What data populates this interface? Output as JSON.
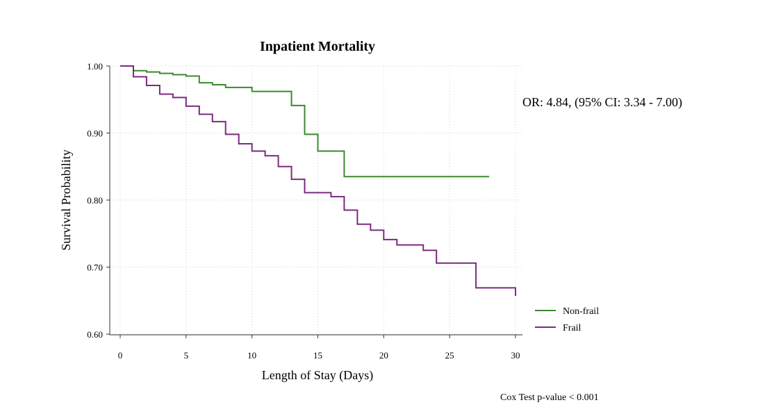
{
  "chart_data": {
    "type": "line",
    "title": "Inpatient Mortality",
    "xlabel": "Length of Stay (Days)",
    "ylabel": "Survival Probability",
    "xlim": [
      0,
      30
    ],
    "ylim": [
      0.6,
      1.0
    ],
    "x_ticks": [
      0,
      5,
      10,
      15,
      20,
      25,
      30
    ],
    "x_tick_labels": [
      "0",
      "5",
      "10",
      "15",
      "20",
      "25",
      "30"
    ],
    "y_ticks": [
      0.6,
      0.7,
      0.8,
      0.9,
      1.0
    ],
    "y_tick_labels": [
      "0.60",
      "0.70",
      "0.80",
      "0.90",
      "1.00"
    ],
    "grid": true,
    "step": true,
    "legend_position": "bottom-right",
    "series": [
      {
        "name": "Non-frail",
        "color": "#3a8a2e",
        "x": [
          0,
          1,
          2,
          3,
          4,
          5,
          6,
          7,
          8,
          10,
          13,
          14,
          15,
          17,
          28
        ],
        "y": [
          1.0,
          0.993,
          0.991,
          0.989,
          0.987,
          0.985,
          0.975,
          0.972,
          0.968,
          0.962,
          0.941,
          0.898,
          0.873,
          0.835,
          0.835
        ]
      },
      {
        "name": "Frail",
        "color": "#7b2a7e",
        "x": [
          0,
          1,
          2,
          3,
          4,
          5,
          6,
          7,
          8,
          9,
          10,
          11,
          12,
          13,
          14,
          16,
          17,
          18,
          19,
          20,
          21,
          23,
          24,
          27,
          30
        ],
        "y": [
          1.0,
          0.984,
          0.971,
          0.958,
          0.953,
          0.94,
          0.928,
          0.917,
          0.898,
          0.884,
          0.873,
          0.866,
          0.85,
          0.831,
          0.811,
          0.805,
          0.785,
          0.764,
          0.755,
          0.741,
          0.733,
          0.725,
          0.706,
          0.669,
          0.657
        ]
      }
    ]
  },
  "annotations": {
    "odds_ratio": "OR: 4.84, (95% CI: 3.34 - 7.00)",
    "p_value": "Cox Test p-value  < 0.001"
  }
}
